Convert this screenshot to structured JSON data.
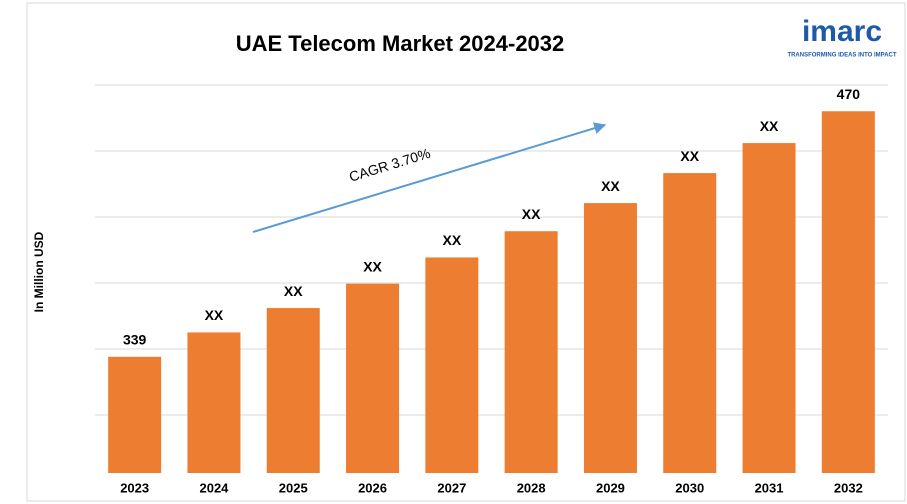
{
  "chart_data": {
    "type": "bar",
    "title": "UAE Telecom Market 2024-2032",
    "y_label": "In Million USD",
    "annotation": "CAGR 3.70%",
    "logo": {
      "name": "imarc",
      "tagline": "TRANSFORMING IDEAS INTO IMPACT"
    },
    "categories": [
      "2023",
      "2024",
      "2025",
      "2026",
      "2027",
      "2028",
      "2029",
      "2030",
      "2031",
      "2032"
    ],
    "values": [
      339,
      352,
      365,
      378,
      392,
      406,
      421,
      437,
      453,
      470
    ],
    "value_labels": [
      "339",
      "XX",
      "XX",
      "XX",
      "XX",
      "XX",
      "XX",
      "XX",
      "XX",
      "470"
    ],
    "color": "#ed7d31",
    "ylim": [
      277,
      484
    ],
    "grid": true
  }
}
